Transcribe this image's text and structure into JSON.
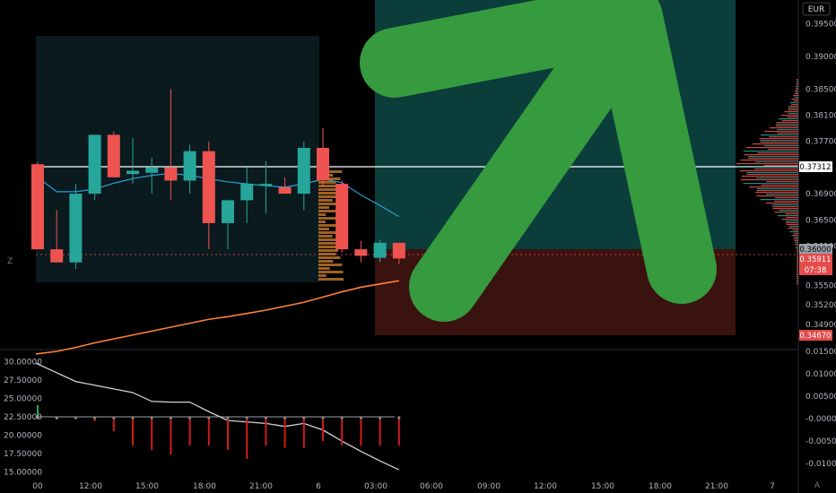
{
  "currency": "EUR",
  "current_price_label": "0.37312",
  "colors": {
    "bull": "#26a69a",
    "bear": "#ef5350",
    "ema": "#ff7f39",
    "bb": "#2b9fd6",
    "arrow": "#369a3e",
    "profit_zone": "#0b3d3b",
    "loss_zone": "#3a120f",
    "tag_red": "#e54b4b"
  },
  "price_tags": [
    {
      "label": "0.37312",
      "kind": "white"
    },
    {
      "label": "0.36000",
      "kind": "gray"
    },
    {
      "label": "0.35911",
      "kind": "red"
    },
    {
      "label": "07:38",
      "kind": "red"
    },
    {
      "label": "0.34670",
      "kind": "red"
    }
  ],
  "lower_right_labels": [
    "0.01500",
    "0.01000",
    "0.00500",
    "-0.00000",
    "-0.00500",
    "-0.01000"
  ],
  "bottom_corner_icons": [
    "Z",
    "A"
  ],
  "chart_data": [
    {
      "type": "candlestick",
      "currency": "EUR",
      "y_ticks": [
        "0.39500",
        "0.39000",
        "0.38500",
        "0.38100",
        "0.37700",
        "0.36900",
        "0.36500",
        "0.36100",
        "0.35500",
        "0.35200",
        "0.34900"
      ],
      "x_ticks": [
        "00",
        "12:00",
        "15:00",
        "18:00",
        "21:00",
        "6",
        "03:00",
        "06:00",
        "09:00",
        "12:00",
        "15:00",
        "18:00",
        "21:00",
        "7"
      ],
      "last_price": 0.37312,
      "entry_price": 0.36,
      "stop_price": 0.3467,
      "current_price": 0.35911,
      "countdown": "07:38",
      "candles": [
        {
          "o": 0.3735,
          "h": 0.3738,
          "l": 0.3605,
          "c": 0.3605
        },
        {
          "o": 0.3605,
          "h": 0.3665,
          "l": 0.3585,
          "c": 0.3585
        },
        {
          "o": 0.3585,
          "h": 0.3705,
          "l": 0.3575,
          "c": 0.369
        },
        {
          "o": 0.369,
          "h": 0.378,
          "l": 0.368,
          "c": 0.378
        },
        {
          "o": 0.378,
          "h": 0.3785,
          "l": 0.3715,
          "c": 0.3715
        },
        {
          "o": 0.372,
          "h": 0.3775,
          "l": 0.3705,
          "c": 0.3725
        },
        {
          "o": 0.3722,
          "h": 0.3745,
          "l": 0.369,
          "c": 0.373
        },
        {
          "o": 0.373,
          "h": 0.385,
          "l": 0.368,
          "c": 0.371
        },
        {
          "o": 0.371,
          "h": 0.3765,
          "l": 0.369,
          "c": 0.3755
        },
        {
          "o": 0.3755,
          "h": 0.377,
          "l": 0.3605,
          "c": 0.3645
        },
        {
          "o": 0.3645,
          "h": 0.368,
          "l": 0.3605,
          "c": 0.368
        },
        {
          "o": 0.368,
          "h": 0.373,
          "l": 0.3645,
          "c": 0.3705
        },
        {
          "o": 0.3705,
          "h": 0.374,
          "l": 0.366,
          "c": 0.3705
        },
        {
          "o": 0.37,
          "h": 0.3715,
          "l": 0.369,
          "c": 0.369
        },
        {
          "o": 0.369,
          "h": 0.377,
          "l": 0.3665,
          "c": 0.376
        },
        {
          "o": 0.376,
          "h": 0.379,
          "l": 0.37,
          "c": 0.371
        },
        {
          "o": 0.3705,
          "h": 0.371,
          "l": 0.36,
          "c": 0.3605
        },
        {
          "o": 0.3605,
          "h": 0.3618,
          "l": 0.3585,
          "c": 0.3595
        },
        {
          "o": 0.3592,
          "h": 0.362,
          "l": 0.3585,
          "c": 0.3615
        },
        {
          "o": 0.3615,
          "h": 0.3615,
          "l": 0.3582,
          "c": 0.3591
        }
      ],
      "ema": [
        0.3445,
        0.3449,
        0.3455,
        0.3462,
        0.3468,
        0.3474,
        0.348,
        0.3486,
        0.3492,
        0.3498,
        0.3502,
        0.3507,
        0.3512,
        0.3518,
        0.3524,
        0.3532,
        0.354,
        0.3547,
        0.3552,
        0.3557
      ],
      "bb_mid": [
        0.3715,
        0.3693,
        0.3693,
        0.3697,
        0.3706,
        0.3713,
        0.3718,
        0.3721,
        0.3718,
        0.3713,
        0.3708,
        0.3705,
        0.3702,
        0.37,
        0.3705,
        0.3712,
        0.3707,
        0.3688,
        0.3672,
        0.3655
      ]
    },
    {
      "type": "line",
      "y_ticks": [
        "30.00000",
        "27.50000",
        "25.00000",
        "22.50000",
        "20.00000",
        "17.50000",
        "15.00000"
      ],
      "level": 22.5,
      "series": [
        {
          "values": [
            29.8,
            28.5,
            27.3,
            26.8,
            26.3,
            25.8,
            24.6,
            24.5,
            24.5,
            23.2,
            22.0,
            21.8,
            21.6,
            21.2,
            21.6,
            20.7,
            19.2,
            17.8,
            16.5,
            15.3
          ]
        }
      ]
    },
    {
      "type": "bar",
      "y_ticks": [
        "0.01500",
        "0.01000",
        "0.00500",
        "-0.00000",
        "-0.00500",
        "-0.01000"
      ],
      "values": [
        0.003,
        -0.0,
        0.0003,
        -0.0006,
        -0.0028,
        -0.006,
        -0.007,
        -0.008,
        -0.006,
        -0.006,
        -0.007,
        -0.009,
        -0.006,
        -0.0065,
        -0.0065,
        -0.005,
        -0.006,
        -0.006,
        -0.006,
        -0.006
      ]
    }
  ]
}
